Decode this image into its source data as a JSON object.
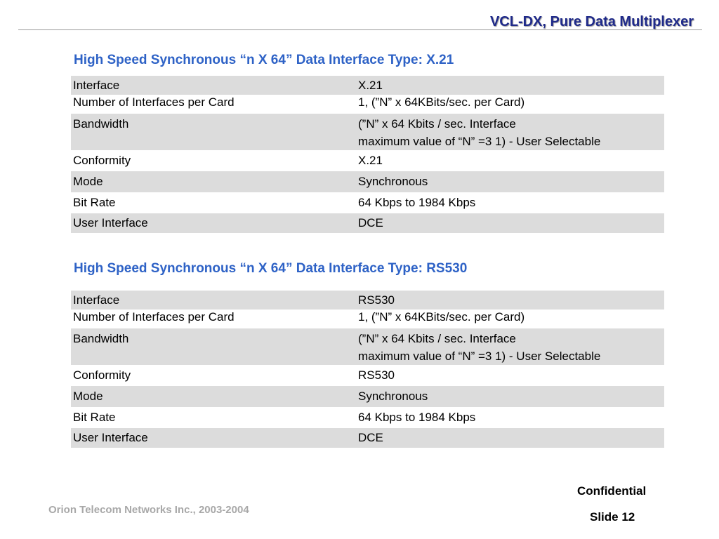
{
  "header": {
    "title": "VCL-DX, Pure Data Multiplexer"
  },
  "sections": [
    {
      "title": "High Speed Synchronous  “n X 64” Data Interface Type: X.21",
      "rows": [
        {
          "label": "Interface",
          "value": "X.21"
        },
        {
          "label": "Number of Interfaces per Card",
          "value": "1, (”N” x 64KBits/sec. per Card)"
        },
        {
          "label": "Bandwidth",
          "value": "(”N” x 64 Kbits / sec. Interface",
          "value2": "maximum value of “N” =3 1) - User Selectable"
        },
        {
          "label": "Conformity",
          "value": "X.21"
        },
        {
          "label": "Mode",
          "value": "Synchronous"
        },
        {
          "label": "Bit Rate",
          "value": "64 Kbps to 1984 Kbps"
        },
        {
          "label": "User Interface",
          "value": "DCE"
        }
      ]
    },
    {
      "title": "High Speed Synchronous  “n X 64” Data Interface Type: RS530",
      "rows": [
        {
          "label": "Interface",
          "value": "RS530"
        },
        {
          "label": "Number of Interfaces per Card",
          "value": "1, (”N” x 64KBits/sec. per Card)"
        },
        {
          "label": "Bandwidth",
          "value": "(”N” x 64 Kbits / sec. Interface",
          "value2": "maximum value of “N” =3 1) - User Selectable"
        },
        {
          "label": "Conformity",
          "value": "RS530"
        },
        {
          "label": "Mode",
          "value": "Synchronous"
        },
        {
          "label": "Bit Rate",
          "value": "64 Kbps to 1984 Kbps"
        },
        {
          "label": "User Interface",
          "value": "DCE"
        }
      ]
    }
  ],
  "footer": {
    "company": "Orion Telecom Networks Inc., 2003-2004",
    "confidential": "Confidential",
    "slide": "Slide 12"
  },
  "colors": {
    "header_title": "#1f2a8a",
    "section_title": "#2e62c6",
    "row_shade": "#dcdcdc",
    "footer_company": "#a8a8a8"
  }
}
